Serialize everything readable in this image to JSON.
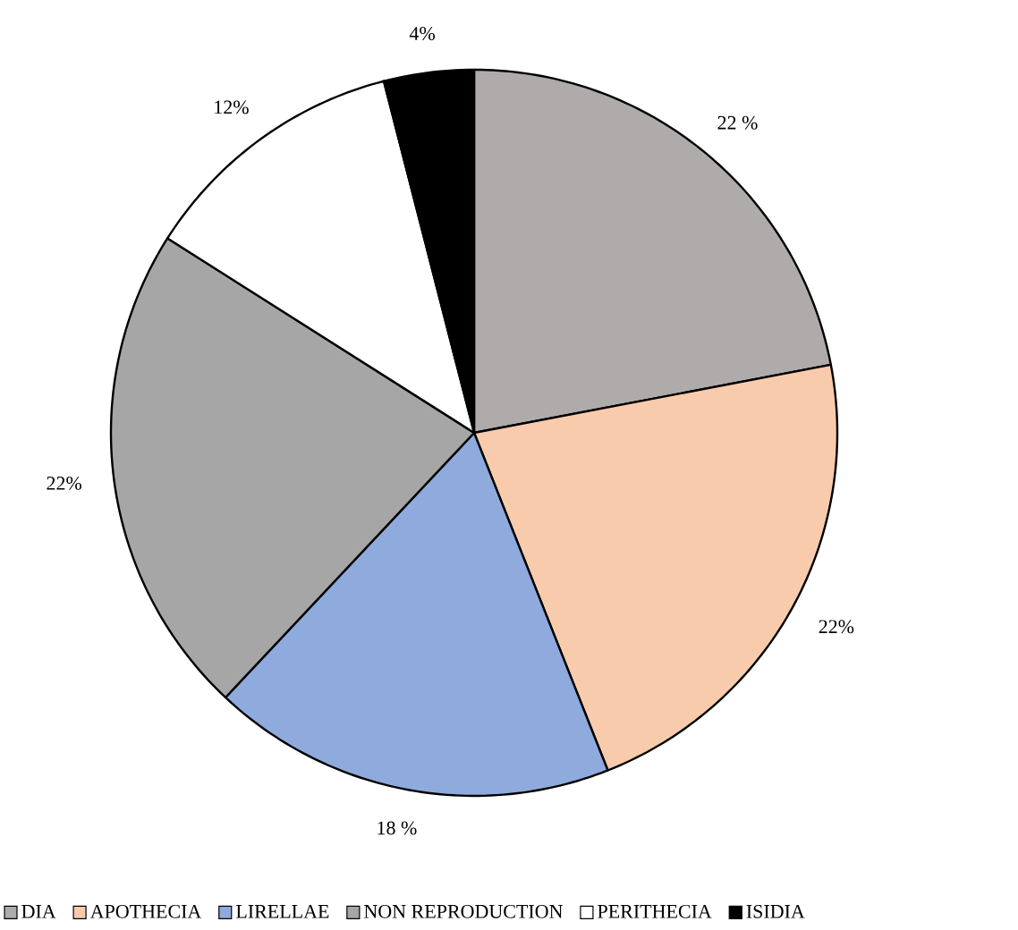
{
  "chart_data": {
    "type": "pie",
    "categories": [
      "DIA",
      "APOTHECIA",
      "LIRELLAE",
      "NON REPRODUCTION",
      "PERITHECIA",
      "ISIDIA"
    ],
    "values": [
      22,
      22,
      18,
      22,
      12,
      4
    ],
    "value_labels": [
      "22 %",
      "22%",
      "18 %",
      "22%",
      "12%",
      "4%"
    ],
    "colors": [
      "#afabab",
      "#f8cbad",
      "#8faadc",
      "#a6a6a6",
      "#ffffff",
      "#000000"
    ],
    "legend": "bottom"
  }
}
